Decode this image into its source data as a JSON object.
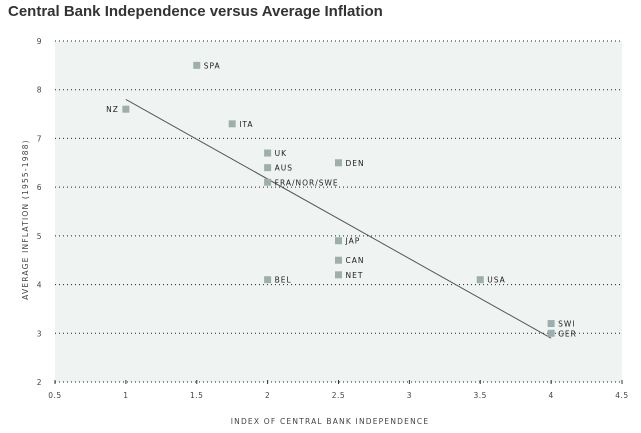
{
  "chart_data": {
    "type": "scatter",
    "title": "Central Bank Independence versus Average Inflation",
    "xlabel": "INDEX OF CENTRAL BANK INDEPENDENCE",
    "ylabel": "AVERAGE INFLATION (1955-1988)",
    "xlim": [
      0.5,
      4.5
    ],
    "ylim": [
      2,
      9
    ],
    "x_ticks": [
      "0.5",
      "1",
      "1.5",
      "2",
      "2.5",
      "3",
      "3.5",
      "4",
      "4.5"
    ],
    "y_ticks": [
      "2",
      "3",
      "4",
      "5",
      "6",
      "7",
      "8",
      "9"
    ],
    "grid": "horizontal dotted",
    "points": [
      {
        "label": "SPA",
        "x": 1.5,
        "y": 8.5,
        "label_pos": "right"
      },
      {
        "label": "NZ",
        "x": 1.0,
        "y": 7.6,
        "label_pos": "left"
      },
      {
        "label": "ITA",
        "x": 1.75,
        "y": 7.3,
        "label_pos": "right"
      },
      {
        "label": "UK",
        "x": 2.0,
        "y": 6.7,
        "label_pos": "right"
      },
      {
        "label": "AUS",
        "x": 2.0,
        "y": 6.4,
        "label_pos": "right"
      },
      {
        "label": "DEN",
        "x": 2.5,
        "y": 6.5,
        "label_pos": "right"
      },
      {
        "label": "FRA/NOR/SWE",
        "x": 2.0,
        "y": 6.1,
        "label_pos": "right"
      },
      {
        "label": "JAP",
        "x": 2.5,
        "y": 4.9,
        "label_pos": "right"
      },
      {
        "label": "CAN",
        "x": 2.5,
        "y": 4.5,
        "label_pos": "right"
      },
      {
        "label": "NET",
        "x": 2.5,
        "y": 4.2,
        "label_pos": "right"
      },
      {
        "label": "BEL",
        "x": 2.0,
        "y": 4.1,
        "label_pos": "right"
      },
      {
        "label": "USA",
        "x": 3.5,
        "y": 4.1,
        "label_pos": "right"
      },
      {
        "label": "SWI",
        "x": 4.0,
        "y": 3.2,
        "label_pos": "right"
      },
      {
        "label": "GER",
        "x": 4.0,
        "y": 3.0,
        "label_pos": "right"
      }
    ],
    "trendline": {
      "x": [
        1.0,
        4.0
      ],
      "y": [
        7.8,
        2.9
      ]
    },
    "colors": {
      "plot_background": "#eff3f2",
      "marker": "#9eaeac",
      "trendline": "#555555",
      "grid": "#222222"
    }
  }
}
